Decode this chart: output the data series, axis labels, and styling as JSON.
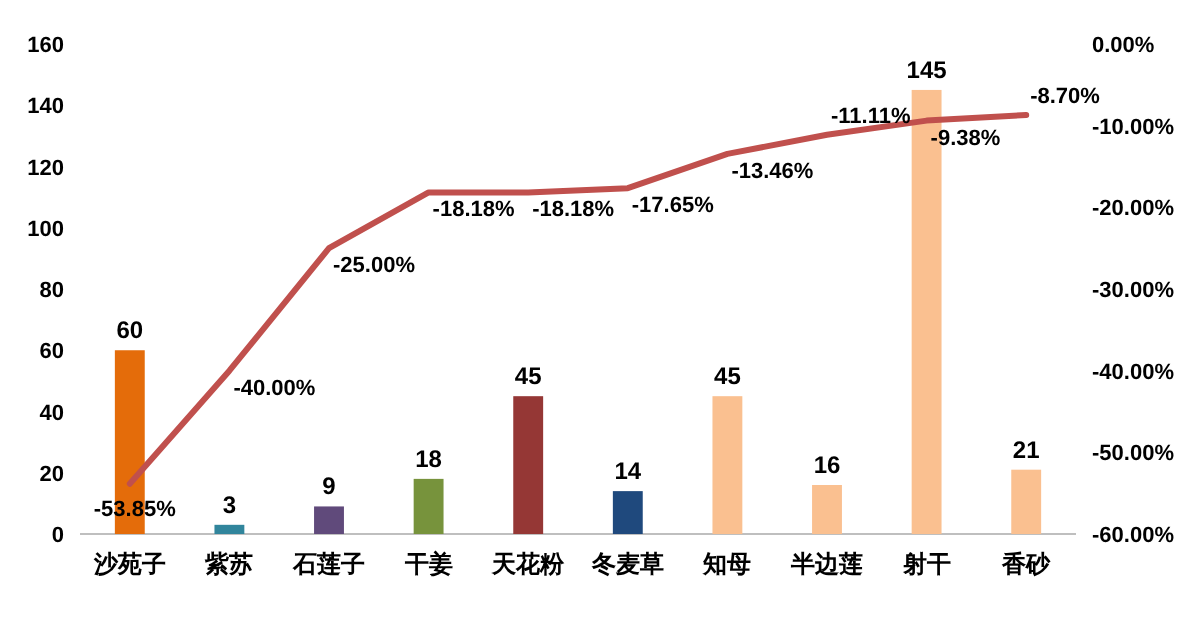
{
  "chart_data": {
    "type": "bar",
    "categories": [
      "沙苑子",
      "紫苏",
      "石莲子",
      "干姜",
      "天花粉",
      "冬麦草",
      "知母",
      "半边莲",
      "射干",
      "香砂"
    ],
    "series": [
      {
        "colors": [
          "#e46c0a",
          "#31859c",
          "#604a7b",
          "#77933c",
          "#953735",
          "#1f497d",
          "#fac090",
          "#fac090",
          "#fac090",
          "#fac090"
        ],
        "values": [
          60,
          3,
          9,
          18,
          45,
          14,
          45,
          16,
          145,
          21
        ]
      },
      {
        "type": "line",
        "axis": "y2",
        "color": "#c0504d",
        "values": [
          -53.85,
          -40.0,
          -25.0,
          -18.18,
          -18.18,
          -17.65,
          -13.46,
          -11.11,
          -9.38,
          -8.7
        ],
        "value_labels": [
          "-53.85%",
          "-40.00%",
          "-25.00%",
          "-18.18%",
          "-18.18%",
          "-17.65%",
          "-13.46%",
          "-11.11%",
          "-9.38%",
          "-8.70%"
        ]
      }
    ],
    "data_labels": true,
    "ylim": [
      0,
      160
    ],
    "yticks": [
      0,
      20,
      40,
      60,
      80,
      100,
      120,
      140,
      160
    ],
    "y2lim": [
      -60,
      0
    ],
    "y2ticks": [
      {
        "value": -60,
        "label": "-60.00%"
      },
      {
        "value": -50,
        "label": "-50.00%"
      },
      {
        "value": -40,
        "label": "-40.00%"
      },
      {
        "value": -30,
        "label": "-30.00%"
      },
      {
        "value": -20,
        "label": "-20.00%"
      },
      {
        "value": -10,
        "label": "-10.00%"
      },
      {
        "value": 0,
        "label": "0.00%"
      }
    ],
    "grid": false,
    "marker": "none",
    "line_style": "solid"
  }
}
